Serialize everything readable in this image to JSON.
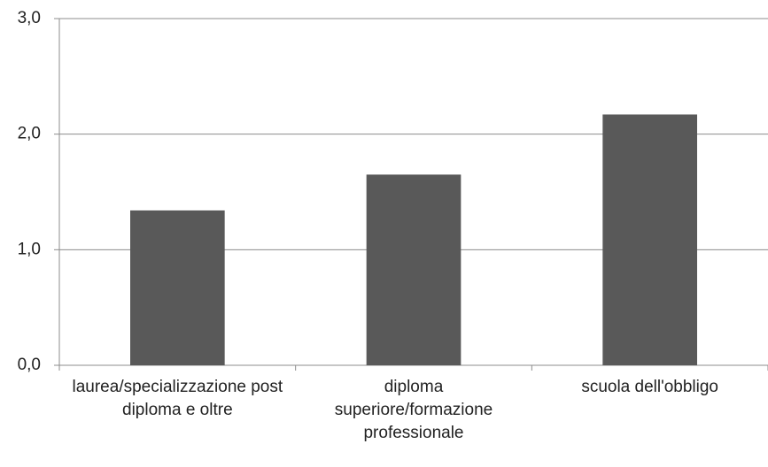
{
  "chart_data": {
    "type": "bar",
    "categories": [
      "laurea/specializzazione post diploma e oltre",
      "diploma superiore/formazione professionale",
      "scuola dell'obbligo"
    ],
    "values": [
      1.34,
      1.65,
      2.17
    ],
    "color": "#595959",
    "ylim": [
      0,
      3
    ],
    "yticks": [
      {
        "value": 0,
        "label": "0,0"
      },
      {
        "value": 1,
        "label": "1,0"
      },
      {
        "value": 2,
        "label": "2,0"
      },
      {
        "value": 3,
        "label": "3,0"
      }
    ],
    "grid": true
  }
}
